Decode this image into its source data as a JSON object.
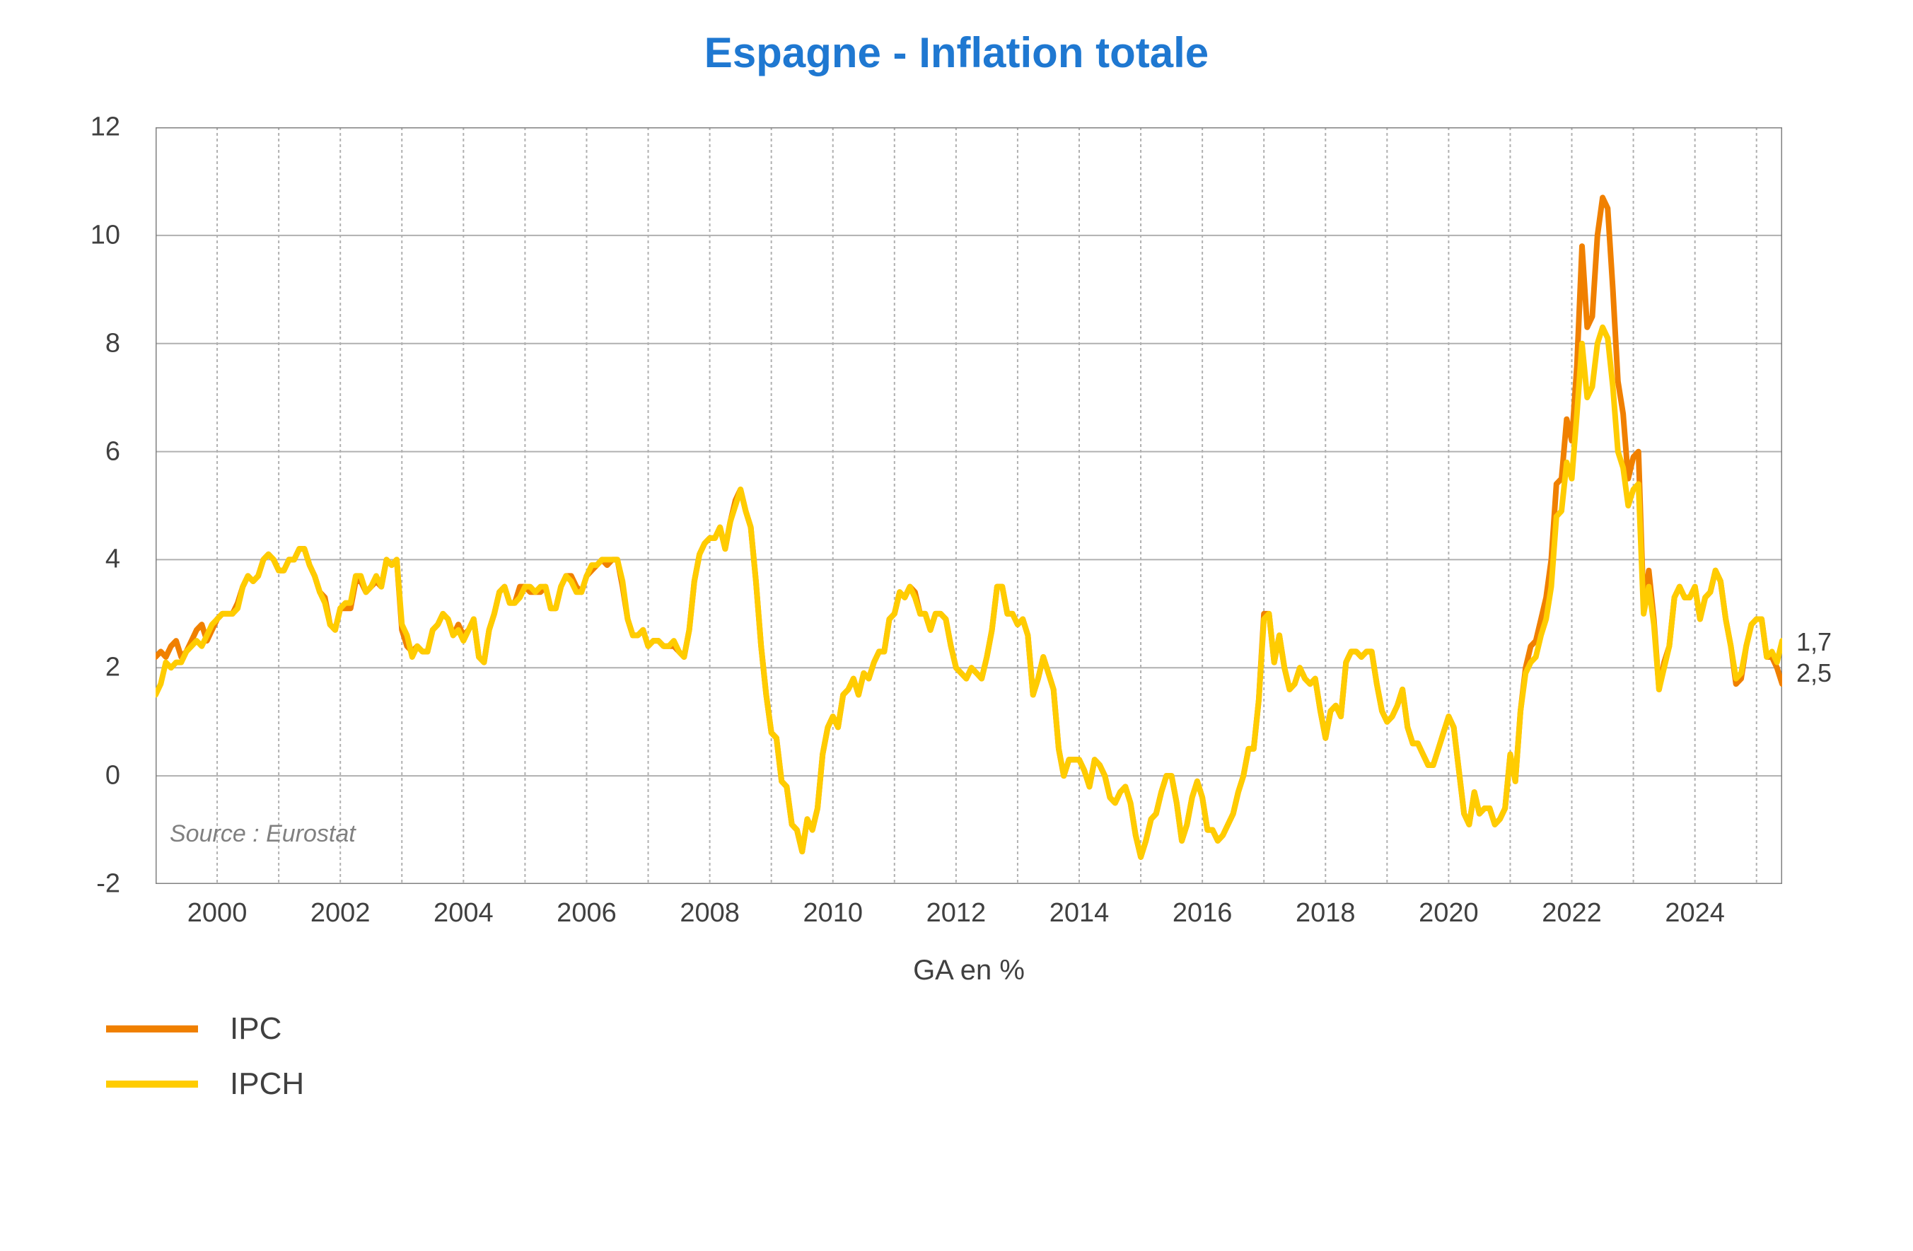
{
  "title": "Espagne - Inflation totale",
  "subtitle": "GA en %",
  "source": "Source : Eurostat",
  "chart": {
    "type": "line",
    "background_color": "#ffffff",
    "grid_color": "#b0b0b0",
    "grid_dash": "4 4",
    "border_color": "#808080",
    "line_width": 8,
    "ylim": [
      -2,
      12
    ],
    "ytick_step": 2,
    "yticks": [
      -2,
      0,
      2,
      4,
      6,
      8,
      10,
      12
    ],
    "x_years": [
      2000,
      2002,
      2004,
      2006,
      2008,
      2010,
      2012,
      2014,
      2016,
      2018,
      2020,
      2022,
      2024
    ],
    "x_domain_months": {
      "start": "1999-01",
      "end": "2025-06",
      "count": 318
    },
    "series": [
      {
        "name": "IPC",
        "color": "#f08000",
        "last_label": "1,7",
        "y": [
          2.2,
          2.3,
          2.2,
          2.4,
          2.5,
          2.2,
          2.3,
          2.5,
          2.7,
          2.8,
          2.5,
          2.7,
          2.9,
          3.0,
          3.0,
          3.0,
          3.2,
          3.5,
          3.7,
          3.6,
          3.7,
          4.0,
          4.1,
          4.0,
          3.8,
          3.8,
          4.0,
          4.0,
          4.2,
          4.2,
          3.9,
          3.7,
          3.4,
          3.3,
          2.8,
          2.7,
          3.1,
          3.1,
          3.1,
          3.6,
          3.6,
          3.4,
          3.5,
          3.6,
          3.5,
          4.0,
          3.9,
          4.0,
          2.7,
          2.4,
          2.3,
          2.4,
          2.3,
          2.3,
          2.7,
          2.8,
          3.0,
          2.9,
          2.6,
          2.8,
          2.6,
          2.7,
          2.9,
          2.2,
          2.1,
          2.7,
          3.0,
          3.4,
          3.5,
          3.2,
          3.2,
          3.5,
          3.5,
          3.4,
          3.4,
          3.4,
          3.5,
          3.1,
          3.1,
          3.5,
          3.7,
          3.7,
          3.5,
          3.4,
          3.7,
          3.8,
          3.9,
          4.0,
          3.9,
          4.0,
          4.0,
          3.5,
          2.9,
          2.6,
          2.6,
          2.7,
          2.4,
          2.5,
          2.5,
          2.4,
          2.4,
          2.4,
          2.3,
          2.2,
          2.7,
          3.6,
          4.1,
          4.3,
          4.4,
          4.4,
          4.6,
          4.2,
          4.7,
          5.1,
          5.3,
          4.9,
          4.6,
          3.6,
          2.4,
          1.5,
          0.8,
          0.7,
          -0.1,
          -0.2,
          -0.9,
          -1.0,
          -1.4,
          -0.8,
          -1.0,
          -0.6,
          0.4,
          0.9,
          1.1,
          0.9,
          1.5,
          1.6,
          1.8,
          1.5,
          1.9,
          1.8,
          2.1,
          2.3,
          2.3,
          2.9,
          3.0,
          3.4,
          3.3,
          3.5,
          3.4,
          3.0,
          3.0,
          2.7,
          3.0,
          3.0,
          2.9,
          2.4,
          2.0,
          1.9,
          1.8,
          2.0,
          1.9,
          1.8,
          2.2,
          2.7,
          3.5,
          3.5,
          3.0,
          3.0,
          2.8,
          2.9,
          2.6,
          1.5,
          1.8,
          2.2,
          1.9,
          1.6,
          0.5,
          0.0,
          0.3,
          0.3,
          0.3,
          0.1,
          -0.2,
          0.3,
          0.2,
          0.0,
          -0.4,
          -0.5,
          -0.3,
          -0.2,
          -0.5,
          -1.1,
          -1.5,
          -1.2,
          -0.8,
          -0.7,
          -0.3,
          0.0,
          0.0,
          -0.5,
          -1.2,
          -0.9,
          -0.4,
          -0.1,
          -0.4,
          -1.0,
          -1.0,
          -1.2,
          -1.1,
          -0.9,
          -0.7,
          -0.3,
          0.0,
          0.5,
          0.5,
          1.4,
          3.0,
          3.0,
          2.1,
          2.6,
          2.0,
          1.6,
          1.7,
          2.0,
          1.8,
          1.7,
          1.8,
          1.2,
          0.7,
          1.2,
          1.3,
          1.1,
          2.1,
          2.3,
          2.3,
          2.2,
          2.3,
          2.3,
          1.7,
          1.2,
          1.0,
          1.1,
          1.3,
          1.6,
          0.9,
          0.6,
          0.6,
          0.4,
          0.2,
          0.2,
          0.5,
          0.8,
          1.1,
          0.9,
          0.1,
          -0.7,
          -0.9,
          -0.3,
          -0.7,
          -0.6,
          -0.6,
          -0.9,
          -0.8,
          -0.6,
          0.4,
          -0.1,
          1.2,
          2.0,
          2.4,
          2.5,
          2.9,
          3.3,
          4.0,
          5.4,
          5.5,
          6.6,
          6.2,
          7.6,
          9.8,
          8.3,
          8.5,
          10.0,
          10.7,
          10.5,
          9.0,
          7.3,
          6.7,
          5.5,
          5.9,
          6.0,
          3.1,
          3.8,
          2.9,
          1.6,
          2.1,
          2.4,
          3.3,
          3.5,
          3.3,
          3.3,
          3.5,
          2.9,
          3.3,
          3.4,
          3.8,
          3.6,
          2.9,
          2.4,
          1.7,
          1.8,
          2.4,
          2.8,
          2.9,
          2.9,
          2.2,
          2.2,
          2.0,
          1.7
        ]
      },
      {
        "name": "IPCH",
        "color": "#ffcc00",
        "last_label": "2,5",
        "y": [
          1.5,
          1.7,
          2.1,
          2.0,
          2.1,
          2.1,
          2.3,
          2.4,
          2.5,
          2.4,
          2.6,
          2.8,
          2.9,
          3.0,
          3.0,
          3.0,
          3.1,
          3.5,
          3.7,
          3.6,
          3.7,
          4.0,
          4.1,
          4.0,
          3.8,
          3.8,
          4.0,
          4.0,
          4.2,
          4.2,
          3.9,
          3.7,
          3.4,
          3.2,
          2.8,
          2.7,
          3.1,
          3.2,
          3.2,
          3.7,
          3.7,
          3.4,
          3.5,
          3.7,
          3.5,
          4.0,
          3.9,
          4.0,
          2.8,
          2.6,
          2.2,
          2.4,
          2.3,
          2.3,
          2.7,
          2.8,
          3.0,
          2.9,
          2.6,
          2.7,
          2.5,
          2.7,
          2.9,
          2.2,
          2.1,
          2.7,
          3.0,
          3.4,
          3.5,
          3.2,
          3.2,
          3.3,
          3.5,
          3.5,
          3.4,
          3.5,
          3.5,
          3.1,
          3.1,
          3.5,
          3.7,
          3.6,
          3.4,
          3.4,
          3.7,
          3.9,
          3.9,
          4.0,
          4.0,
          4.0,
          4.0,
          3.6,
          2.9,
          2.6,
          2.6,
          2.7,
          2.4,
          2.5,
          2.5,
          2.4,
          2.4,
          2.5,
          2.3,
          2.2,
          2.7,
          3.6,
          4.1,
          4.3,
          4.4,
          4.4,
          4.6,
          4.2,
          4.7,
          5.0,
          5.3,
          4.9,
          4.6,
          3.6,
          2.4,
          1.5,
          0.8,
          0.7,
          -0.1,
          -0.2,
          -0.9,
          -1.0,
          -1.4,
          -0.8,
          -1.0,
          -0.6,
          0.4,
          0.9,
          1.1,
          0.9,
          1.5,
          1.6,
          1.8,
          1.5,
          1.9,
          1.8,
          2.1,
          2.3,
          2.3,
          2.9,
          3.0,
          3.4,
          3.3,
          3.5,
          3.3,
          3.0,
          3.0,
          2.7,
          3.0,
          3.0,
          2.9,
          2.4,
          2.0,
          1.9,
          1.8,
          2.0,
          1.9,
          1.8,
          2.2,
          2.7,
          3.5,
          3.5,
          3.0,
          3.0,
          2.8,
          2.9,
          2.6,
          1.5,
          1.8,
          2.2,
          1.9,
          1.6,
          0.5,
          0.0,
          0.3,
          0.3,
          0.3,
          0.1,
          -0.2,
          0.3,
          0.2,
          0.0,
          -0.4,
          -0.5,
          -0.3,
          -0.2,
          -0.5,
          -1.1,
          -1.5,
          -1.2,
          -0.8,
          -0.7,
          -0.3,
          0.0,
          0.0,
          -0.5,
          -1.2,
          -0.9,
          -0.4,
          -0.1,
          -0.4,
          -1.0,
          -1.0,
          -1.2,
          -1.1,
          -0.9,
          -0.7,
          -0.3,
          0.0,
          0.5,
          0.5,
          1.4,
          2.9,
          3.0,
          2.1,
          2.6,
          2.0,
          1.6,
          1.7,
          2.0,
          1.8,
          1.7,
          1.8,
          1.2,
          0.7,
          1.2,
          1.3,
          1.1,
          2.1,
          2.3,
          2.3,
          2.2,
          2.3,
          2.3,
          1.7,
          1.2,
          1.0,
          1.1,
          1.3,
          1.6,
          0.9,
          0.6,
          0.6,
          0.4,
          0.2,
          0.2,
          0.5,
          0.8,
          1.1,
          0.9,
          0.1,
          -0.7,
          -0.9,
          -0.3,
          -0.7,
          -0.6,
          -0.6,
          -0.9,
          -0.8,
          -0.6,
          0.4,
          -0.1,
          1.2,
          1.9,
          2.1,
          2.2,
          2.6,
          2.9,
          3.5,
          4.8,
          4.9,
          5.8,
          5.5,
          6.7,
          8.0,
          7.0,
          7.2,
          8.0,
          8.3,
          8.1,
          7.2,
          6.0,
          5.7,
          5.0,
          5.3,
          5.4,
          3.0,
          3.5,
          2.8,
          1.6,
          2.0,
          2.4,
          3.3,
          3.5,
          3.3,
          3.3,
          3.5,
          2.9,
          3.3,
          3.4,
          3.8,
          3.6,
          2.9,
          2.4,
          1.8,
          1.9,
          2.4,
          2.8,
          2.9,
          2.9,
          2.2,
          2.3,
          2.1,
          2.5
        ]
      }
    ]
  },
  "legend": [
    {
      "label": "IPC",
      "color": "#f08000"
    },
    {
      "label": "IPCH",
      "color": "#ffcc00"
    }
  ],
  "title_fontsize": 60,
  "axis_fontsize": 38,
  "legend_fontsize": 44
}
